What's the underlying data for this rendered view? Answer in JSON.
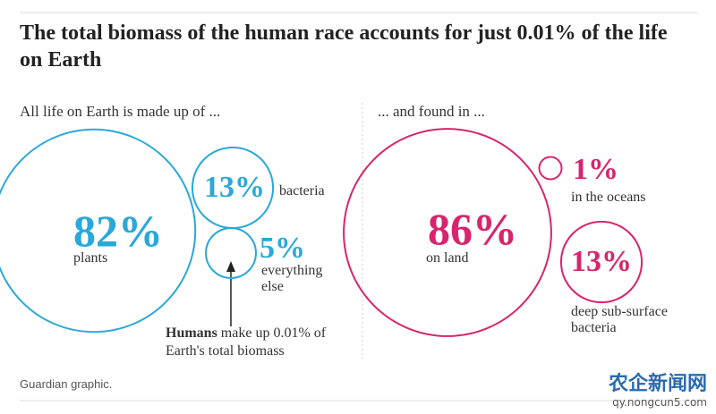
{
  "title": "The total biomass of the human race accounts for just 0.01% of the life on Earth",
  "chart_data": [
    {
      "type": "bubble",
      "subtitle": "All life on Earth is made up of ...",
      "color": "#2aa8d8",
      "categories": [
        "plants",
        "bacteria",
        "everything else"
      ],
      "values": [
        82,
        13,
        5
      ],
      "value_labels": [
        "82%",
        "13%",
        "5%"
      ]
    },
    {
      "type": "bubble",
      "subtitle": "... and found in ...",
      "color": "#d8246e",
      "categories": [
        "on land",
        "in the oceans",
        "deep sub-surface bacteria"
      ],
      "values": [
        86,
        1,
        13
      ],
      "value_labels": [
        "86%",
        "1%",
        "13%"
      ]
    }
  ],
  "annotation": {
    "bold": "Humans",
    "text": "make up 0.01% of Earth's total biomass"
  },
  "source": "Guardian graphic.",
  "watermark": {
    "name": "农企新闻网",
    "url": "qy.nongcun5.com"
  }
}
